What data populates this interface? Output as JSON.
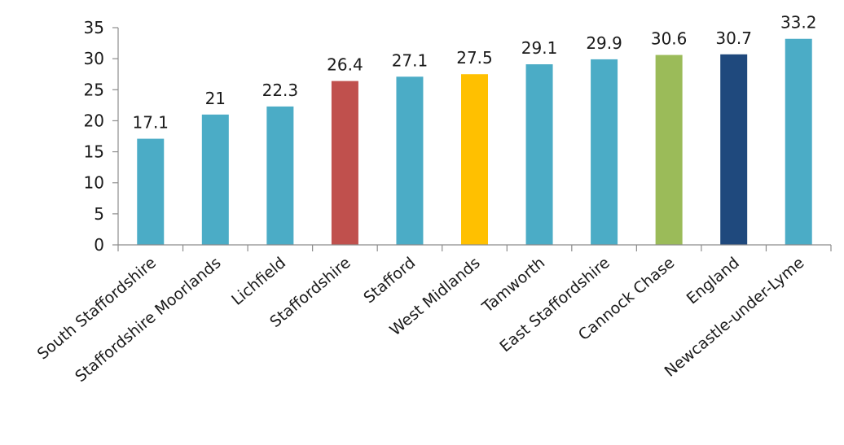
{
  "chart_data": {
    "type": "bar",
    "title": "",
    "xlabel": "",
    "ylabel": "",
    "ylim": [
      0,
      35
    ],
    "yticks": [
      0,
      5,
      10,
      15,
      20,
      25,
      30,
      35
    ],
    "grid": false,
    "legend": "none",
    "categories": [
      "South Staffordshire",
      "Staffordshire Moorlands",
      "Lichfield",
      "Staffordshire",
      "Stafford",
      "West Midlands",
      "Tamworth",
      "East Staffordshire",
      "Cannock Chase",
      "England",
      "Newcastle-under-Lyme"
    ],
    "values": [
      17.1,
      21,
      22.3,
      26.4,
      27.1,
      27.5,
      29.1,
      29.9,
      30.6,
      30.7,
      33.2
    ],
    "data_labels": [
      "17.1",
      "21",
      "22.3",
      "26.4",
      "27.1",
      "27.5",
      "29.1",
      "29.9",
      "30.6",
      "30.7",
      "33.2"
    ],
    "colors": [
      "#4bacc6",
      "#4bacc6",
      "#4bacc6",
      "#c0504d",
      "#4bacc6",
      "#ffc000",
      "#4bacc6",
      "#4bacc6",
      "#9bbb59",
      "#1f497d",
      "#4bacc6"
    ]
  }
}
